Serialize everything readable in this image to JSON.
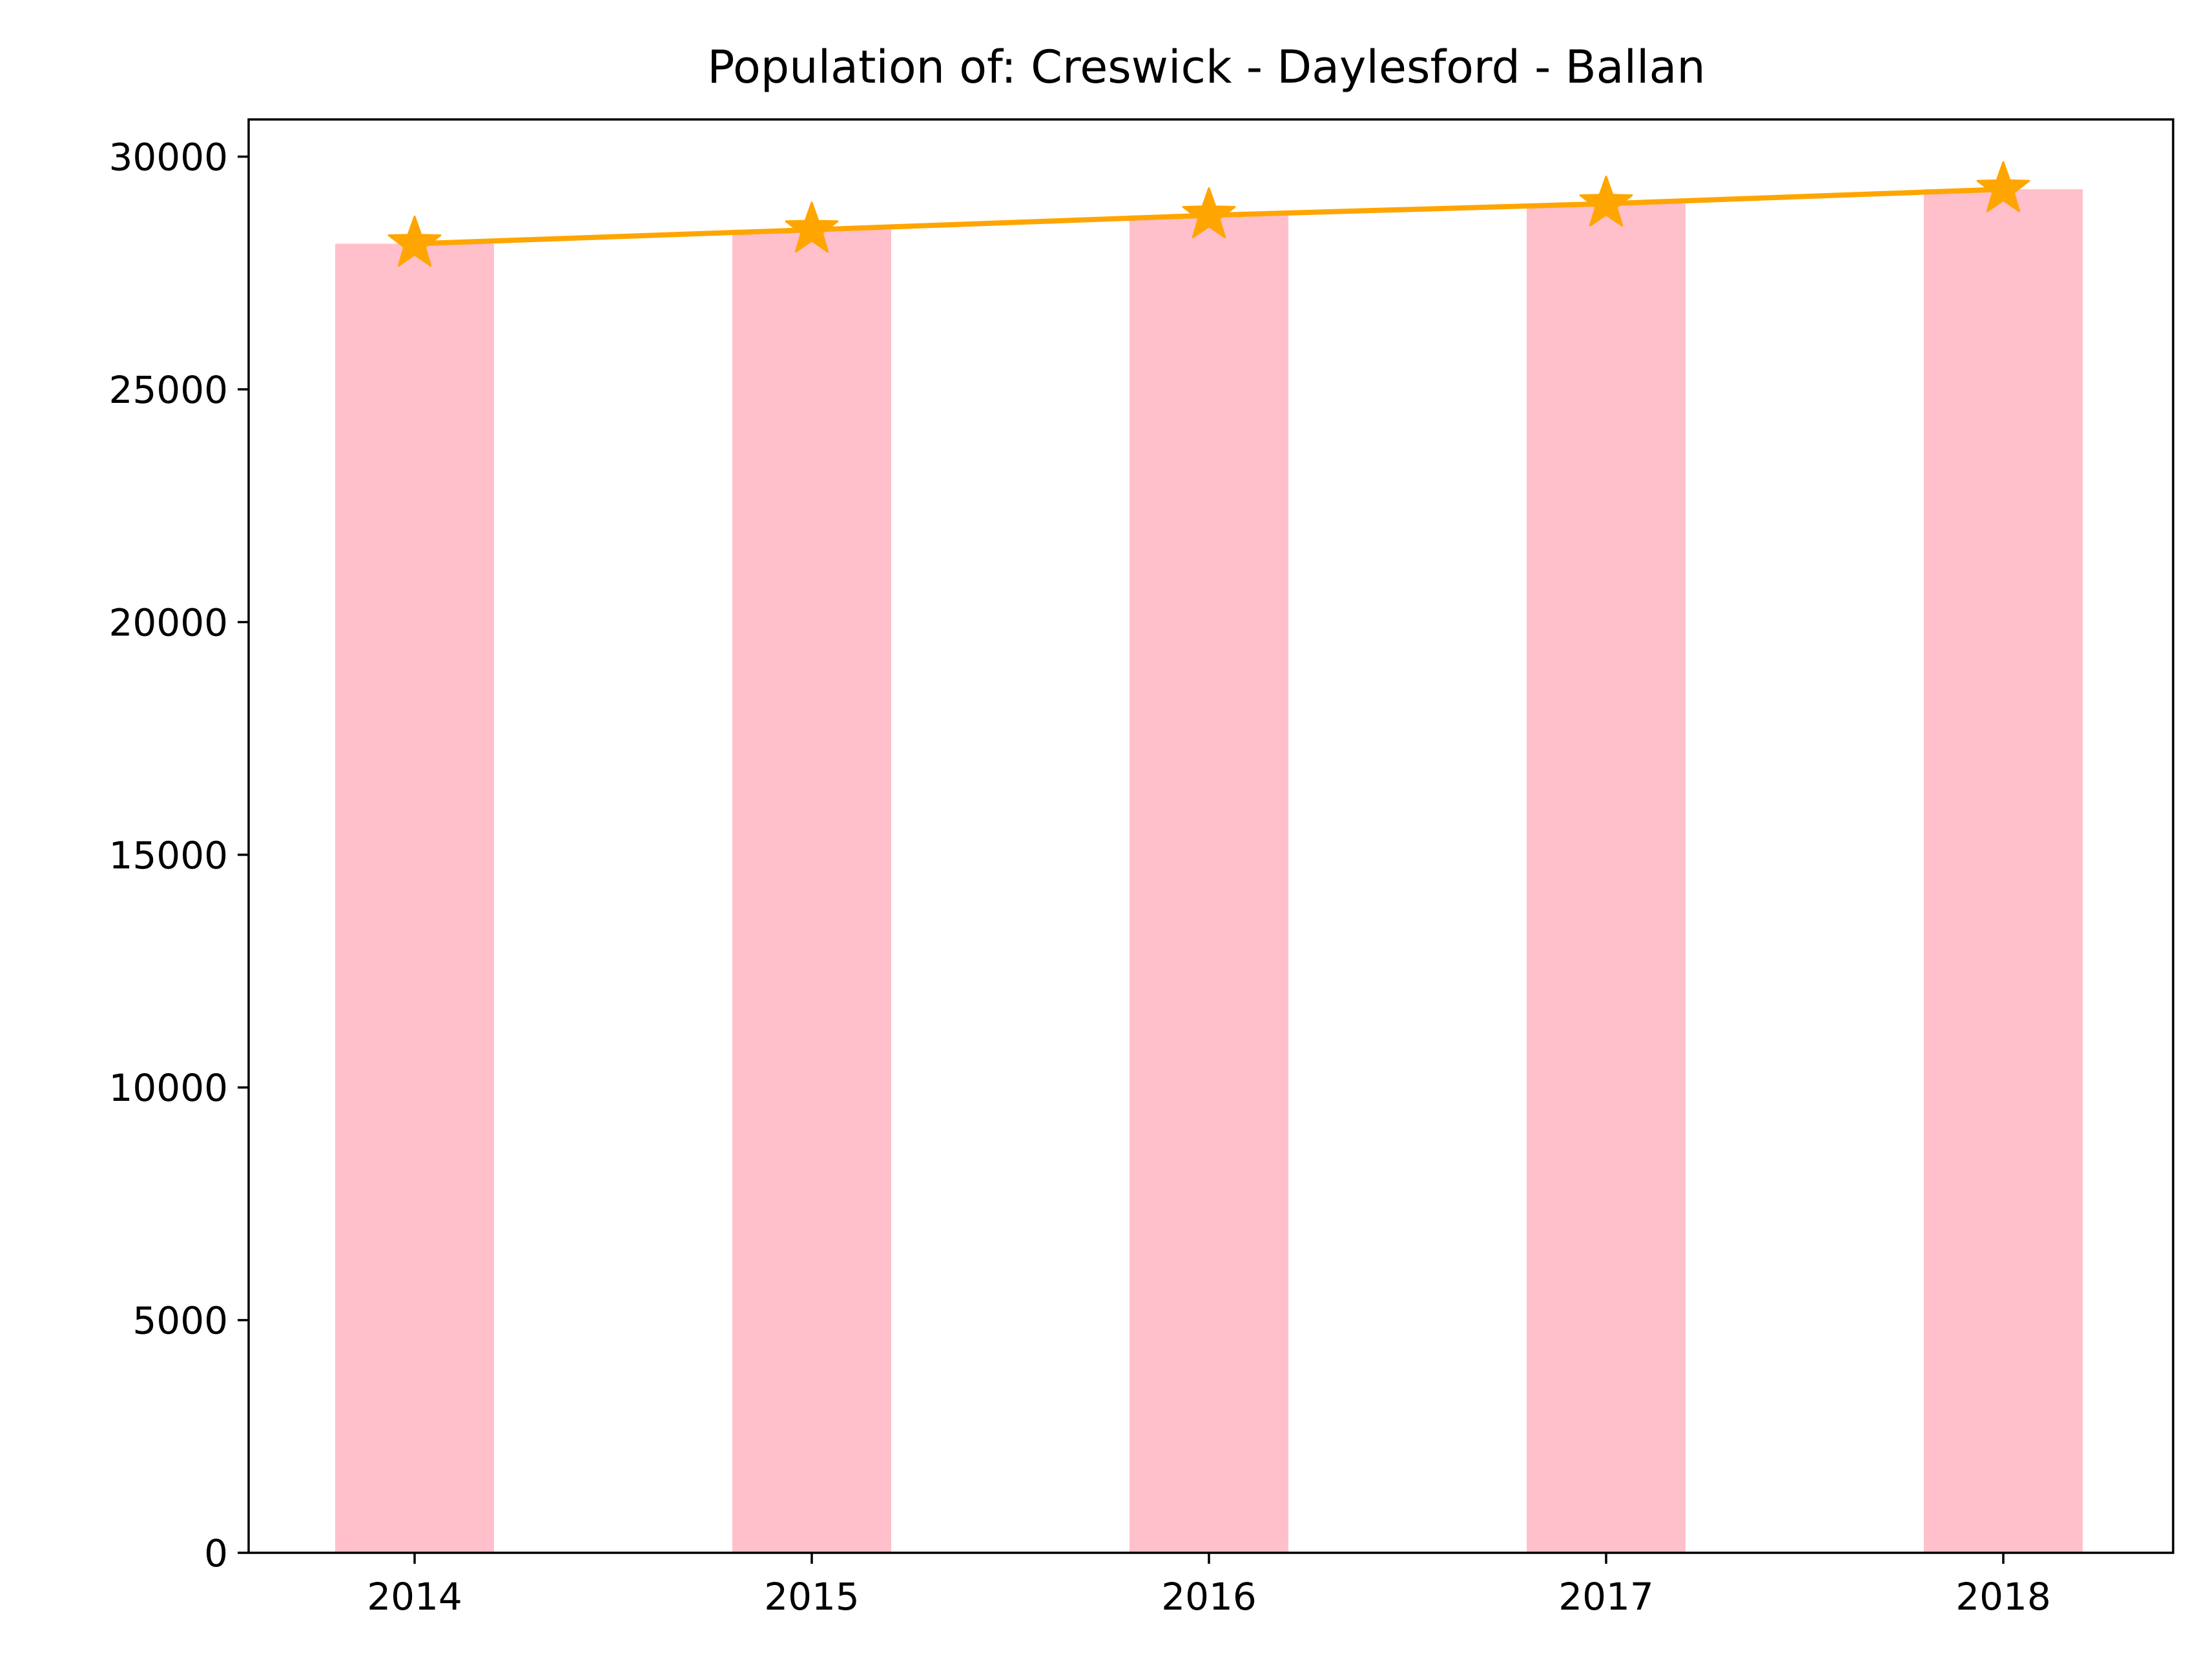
{
  "chart_data": {
    "type": "bar",
    "title": "Population of: Creswick - Daylesford - Ballan",
    "xlabel": "",
    "ylabel": "",
    "categories": [
      "2014",
      "2015",
      "2016",
      "2017",
      "2018"
    ],
    "series": [
      {
        "type": "bar",
        "values": [
          28130,
          28430,
          28740,
          28990,
          29300
        ],
        "color": "#ffc0cb"
      },
      {
        "type": "line",
        "marker": "star",
        "values": [
          28130,
          28430,
          28740,
          28990,
          29300
        ],
        "color": "#ffa500"
      }
    ],
    "ylim": [
      0,
      30800
    ],
    "yticks": [
      "0",
      "5000",
      "10000",
      "15000",
      "20000",
      "25000",
      "30000"
    ],
    "grid": false,
    "legend": "none"
  }
}
